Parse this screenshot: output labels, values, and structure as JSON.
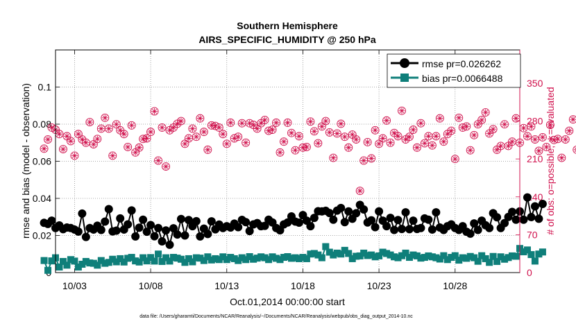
{
  "chart_data": {
    "type": "line",
    "title": "Southern Hemisphere",
    "subtitle": "AIRS_SPECIFIC_HUMIDITY @ 250 hPa",
    "xlabel": "Oct.01,2014 00:00:00 start",
    "ylabel": "rmse and bias (model - observation)",
    "y2label": "# of obs: o=possible; ∗=evaluated",
    "footer": "data file: /Users/gharamti/Documents/NCAR/Reanalysis/~/Documents/NCAR/Reanalysis/webpub/obs_diag_output_2014-10.nc",
    "x_ticks": [
      "10/03",
      "10/08",
      "10/13",
      "10/18",
      "10/23",
      "10/28"
    ],
    "x_range": [
      "09/30 18:00",
      "11/01 06:00"
    ],
    "y_range": [
      0,
      0.12
    ],
    "y_ticks": [
      "0",
      "0.02",
      "0.04",
      "0.06",
      "0.08",
      "0.1"
    ],
    "y2_range": [
      0,
      411.4
    ],
    "y2_ticks": [
      "0",
      "70",
      "140",
      "210",
      "280",
      "350"
    ],
    "colors": {
      "rmse": "#000000",
      "bias": "#0f7f7a",
      "obs": "#d0104c"
    },
    "legend": {
      "location": "top-right",
      "rmse": "rmse pr=0.026262",
      "bias": "bias pr=0.0066488"
    },
    "series": [
      {
        "name": "rmse pr=0.026262",
        "axis": "left",
        "marker": "circle",
        "values": [
          0.0268,
          0.0262,
          0.028,
          0.024,
          0.0254,
          0.0234,
          0.0243,
          0.024,
          0.0232,
          0.0221,
          0.0318,
          0.0192,
          0.024,
          0.0232,
          0.0253,
          0.023,
          0.0275,
          0.0342,
          0.0222,
          0.0226,
          0.0292,
          0.0232,
          0.026,
          0.0335,
          0.0195,
          0.0242,
          0.0285,
          0.022,
          0.0256,
          0.0196,
          0.024,
          0.0168,
          0.0227,
          0.015,
          0.0239,
          0.0205,
          0.0289,
          0.02,
          0.0283,
          0.025,
          0.0277,
          0.0195,
          0.0237,
          0.0208,
          0.0276,
          0.0233,
          0.0259,
          0.024,
          0.025,
          0.0243,
          0.0264,
          0.0245,
          0.0284,
          0.0272,
          0.0224,
          0.026,
          0.0267,
          0.025,
          0.0252,
          0.0285,
          0.027,
          0.024,
          0.0228,
          0.026,
          0.027,
          0.0303,
          0.0275,
          0.0269,
          0.031,
          0.028,
          0.025,
          0.0295,
          0.0331,
          0.033,
          0.0333,
          0.0321,
          0.0285,
          0.0334,
          0.0348,
          0.0272,
          0.033,
          0.029,
          0.032,
          0.0365,
          0.034,
          0.027,
          0.0282,
          0.0245,
          0.033,
          0.028,
          0.025,
          0.0295,
          0.023,
          0.0283,
          0.0235,
          0.0325,
          0.0234,
          0.028,
          0.0235,
          0.024,
          0.0292,
          0.0285,
          0.0232,
          0.0325,
          0.0243,
          0.023,
          0.025,
          0.026,
          0.024,
          0.023,
          0.025,
          0.022,
          0.021,
          0.0265,
          0.023,
          0.028,
          0.0255,
          0.024,
          0.032,
          0.0298,
          0.024,
          0.0267,
          0.03,
          0.0327,
          0.0285,
          0.033,
          0.0285,
          0.0405,
          0.0299,
          0.0357,
          0.029,
          0.037
        ]
      },
      {
        "name": "bias pr=0.0066488",
        "axis": "left",
        "marker": "square",
        "values": [
          0.0065,
          0.0012,
          0.0063,
          0.008,
          0.003,
          0.006,
          0.004,
          0.007,
          0.0062,
          0.003,
          0.0045,
          0.006,
          0.0052,
          0.005,
          0.004,
          0.0065,
          0.005,
          0.0055,
          0.0072,
          0.0058,
          0.0075,
          0.0057,
          0.0077,
          0.0082,
          0.0063,
          0.0057,
          0.008,
          0.0063,
          0.0081,
          0.0062,
          0.01,
          0.006,
          0.008,
          0.0062,
          0.0082,
          0.0078,
          0.0072,
          0.0055,
          0.0075,
          0.0058,
          0.008,
          0.0078,
          0.0065,
          0.0085,
          0.0068,
          0.0075,
          0.007,
          0.0085,
          0.007,
          0.0082,
          0.0075,
          0.0065,
          0.008,
          0.007,
          0.0086,
          0.0072,
          0.0078,
          0.0085,
          0.008,
          0.007,
          0.0085,
          0.0077,
          0.007,
          0.0082,
          0.0086,
          0.0077,
          0.008,
          0.0075,
          0.0082,
          0.0075,
          0.01,
          0.0103,
          0.0095,
          0.008,
          0.014,
          0.011,
          0.0095,
          0.0105,
          0.01,
          0.012,
          0.0103,
          0.0075,
          0.0088,
          0.009,
          0.0105,
          0.0092,
          0.0095,
          0.0085,
          0.009,
          0.011,
          0.0103,
          0.0095,
          0.0085,
          0.008,
          0.0091,
          0.0105,
          0.0082,
          0.0095,
          0.009,
          0.0078,
          0.0082,
          0.009,
          0.0085,
          0.008,
          0.0073,
          0.0091,
          0.007,
          0.0082,
          0.0091,
          0.0067,
          0.008,
          0.0077,
          0.0087,
          0.008,
          0.0061,
          0.0091,
          0.0075,
          0.0055,
          0.0087,
          0.006,
          0.0085,
          0.0072,
          0.0081,
          0.009,
          0.0088,
          0.013,
          0.0112,
          0.0122,
          0.0097,
          0.0062,
          0.01,
          0.0111
        ]
      },
      {
        "name": "possible",
        "axis": "right",
        "marker": "open-circle",
        "values": [
          229,
          246,
          268,
          264,
          256,
          228,
          252,
          243,
          216,
          256,
          246,
          240,
          278,
          237,
          247,
          266,
          286,
          266,
          216,
          274,
          263,
          256,
          232,
          272,
          222,
          231,
          247,
          248,
          260,
          298,
          207,
          268,
          196,
          263,
          268,
          275,
          280,
          238,
          248,
          266,
          251,
          285,
          260,
          227,
          272,
          271,
          268,
          256,
          238,
          277,
          248,
          251,
          276,
          240,
          276,
          273,
          266,
          276,
          282,
          262,
          264,
          277,
          222,
          242,
          277,
          258,
          226,
          252,
          231,
          232,
          279,
          261,
          239,
          270,
          280,
          259,
          212,
          257,
          275,
          251,
          231,
          255,
          246,
          151,
          207,
          241,
          211,
          263,
          238,
          248,
          281,
          240,
          258,
          252,
          299,
          246,
          251,
          264,
          231,
          276,
          239,
          252,
          235,
          252,
          285,
          242,
          256,
          262,
          210,
          286,
          268,
          270,
          226,
          254,
          274,
          282,
          296,
          257,
          265,
          227,
          234,
          274,
          234,
          242,
          285,
          240,
          267,
          252,
          270,
          246,
          225,
          250,
          232,
          273,
          245,
          247,
          212,
          246,
          262,
          283,
          227,
          247
        ]
      },
      {
        "name": "evaluated",
        "axis": "right",
        "marker": "asterisk",
        "values": [
          229,
          246,
          268,
          264,
          256,
          228,
          252,
          243,
          216,
          256,
          246,
          240,
          278,
          237,
          247,
          266,
          286,
          266,
          216,
          274,
          263,
          256,
          232,
          272,
          222,
          231,
          247,
          248,
          260,
          298,
          207,
          268,
          196,
          263,
          268,
          275,
          280,
          238,
          248,
          266,
          251,
          285,
          260,
          227,
          272,
          271,
          268,
          256,
          238,
          277,
          248,
          251,
          276,
          240,
          276,
          273,
          266,
          276,
          282,
          262,
          264,
          277,
          222,
          242,
          277,
          258,
          226,
          252,
          231,
          232,
          279,
          261,
          239,
          270,
          280,
          259,
          212,
          257,
          275,
          251,
          231,
          255,
          246,
          151,
          207,
          241,
          211,
          263,
          238,
          248,
          281,
          240,
          258,
          252,
          299,
          246,
          251,
          264,
          231,
          276,
          239,
          252,
          235,
          252,
          285,
          242,
          256,
          262,
          210,
          286,
          268,
          270,
          226,
          254,
          274,
          282,
          296,
          257,
          265,
          227,
          234,
          274,
          234,
          242,
          285,
          240,
          267,
          252,
          270,
          246,
          225,
          250,
          232,
          273,
          245,
          247,
          212,
          246,
          262,
          283,
          227,
          247
        ]
      }
    ]
  }
}
